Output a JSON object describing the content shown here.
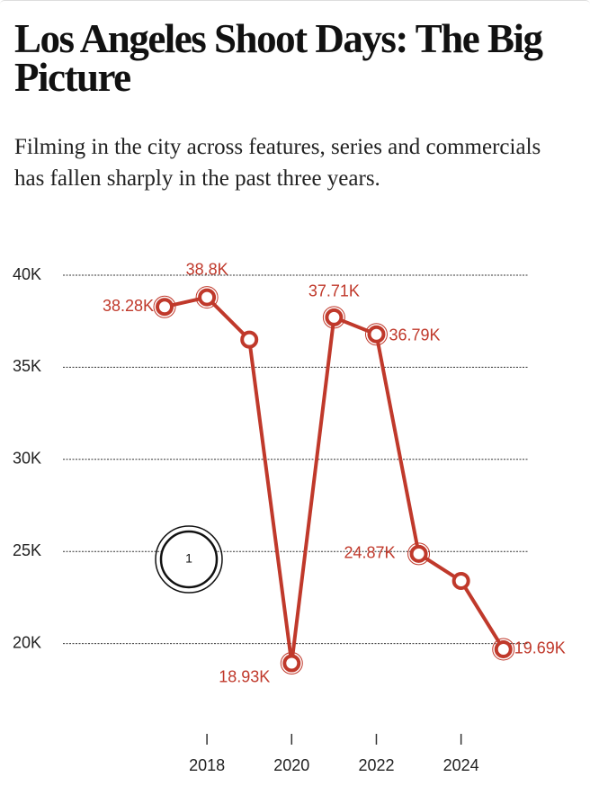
{
  "chart_data": {
    "type": "line",
    "title": "Los Angeles Shoot Days: The Big Picture",
    "subtitle": "Filming in the city across features, series and commercials has fallen sharply in the past three years.",
    "x": [
      2017,
      2018,
      2019,
      2020,
      2021,
      2022,
      2023,
      2024,
      2025
    ],
    "series": [
      {
        "name": "Shoot days",
        "color": "#c0392b",
        "values": [
          38280,
          38800,
          36500,
          18930,
          37710,
          36790,
          24870,
          23400,
          19690
        ],
        "value_labels": [
          "38.28K",
          "38.8K",
          null,
          "18.93K",
          "37.71K",
          "36.79K",
          "24.87K",
          null,
          "19.69K"
        ]
      }
    ],
    "xlim": [
      2014.6,
      2025.6
    ],
    "xticks": [
      2018,
      2020,
      2022,
      2024
    ],
    "ylim": [
      15000,
      40000
    ],
    "yticks": [
      {
        "value": 20000,
        "label": "20K"
      },
      {
        "value": 25000,
        "label": "25K"
      },
      {
        "value": 30000,
        "label": "30K"
      },
      {
        "value": 35000,
        "label": "35K"
      },
      {
        "value": 40000,
        "label": "40K"
      }
    ],
    "grid": true,
    "annotation": "1"
  }
}
